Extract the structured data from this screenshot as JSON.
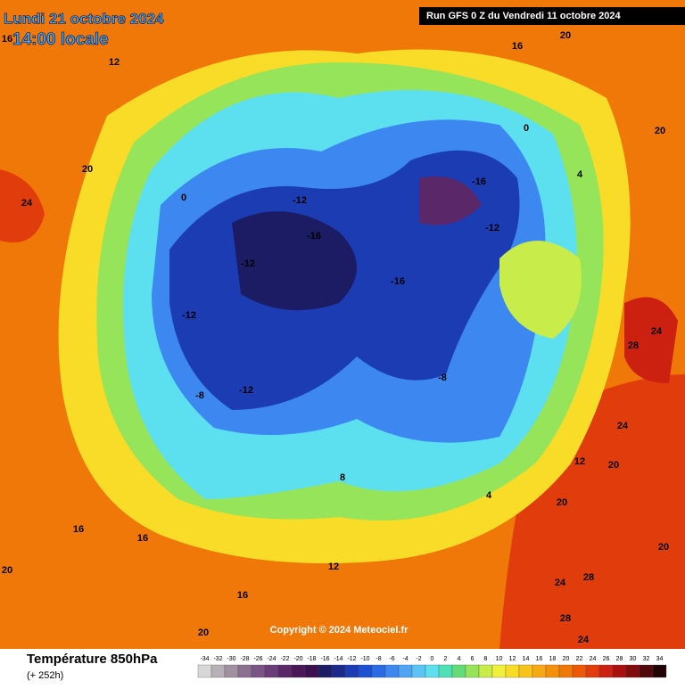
{
  "header": {
    "date": "Lundi 21 octobre 2024",
    "time": "14:00 locale",
    "run": "Run GFS 0 Z du Vendredi 11 octobre 2024"
  },
  "footer": {
    "title": "Température 850hPa",
    "lead": "(+ 252h)",
    "copyright": "Copyright © 2024 Meteociel.fr"
  },
  "colorbar": {
    "ticks": [
      -34,
      -32,
      -30,
      -28,
      -26,
      -24,
      -22,
      -20,
      -18,
      -16,
      -14,
      -12,
      -10,
      -8,
      -6,
      -4,
      -2,
      0,
      2,
      4,
      6,
      8,
      10,
      12,
      14,
      16,
      18,
      20,
      22,
      24,
      26,
      28,
      30,
      32,
      34
    ],
    "colors": [
      "#d8d8d8",
      "#b8b0b8",
      "#a090a0",
      "#8c7090",
      "#7a5484",
      "#6a3c78",
      "#5a2868",
      "#4a1858",
      "#3a1050",
      "#1c1c64",
      "#1a2a8c",
      "#1c3cb4",
      "#1e50d2",
      "#2a6ae6",
      "#3c88f0",
      "#50a4f4",
      "#5cc4f4",
      "#5ce0f0",
      "#50e0b8",
      "#64dc78",
      "#96e45a",
      "#c8ec4a",
      "#f0f03c",
      "#f8dc28",
      "#f8c41c",
      "#f8a814",
      "#f4900c",
      "#f07808",
      "#ec5a08",
      "#e03c0c",
      "#cc2010",
      "#a81010",
      "#800c0c",
      "#500808",
      "#200404"
    ]
  },
  "contour_labels": [
    16,
    12,
    20,
    24,
    16,
    20,
    20,
    0,
    -12,
    -16,
    -12,
    -16,
    -12,
    -8,
    -12,
    -8,
    -16,
    -12,
    0,
    4,
    28,
    24,
    24,
    20,
    12,
    8,
    16,
    16,
    20,
    12,
    24,
    28,
    28,
    24,
    20,
    16,
    20,
    4,
    20
  ]
}
